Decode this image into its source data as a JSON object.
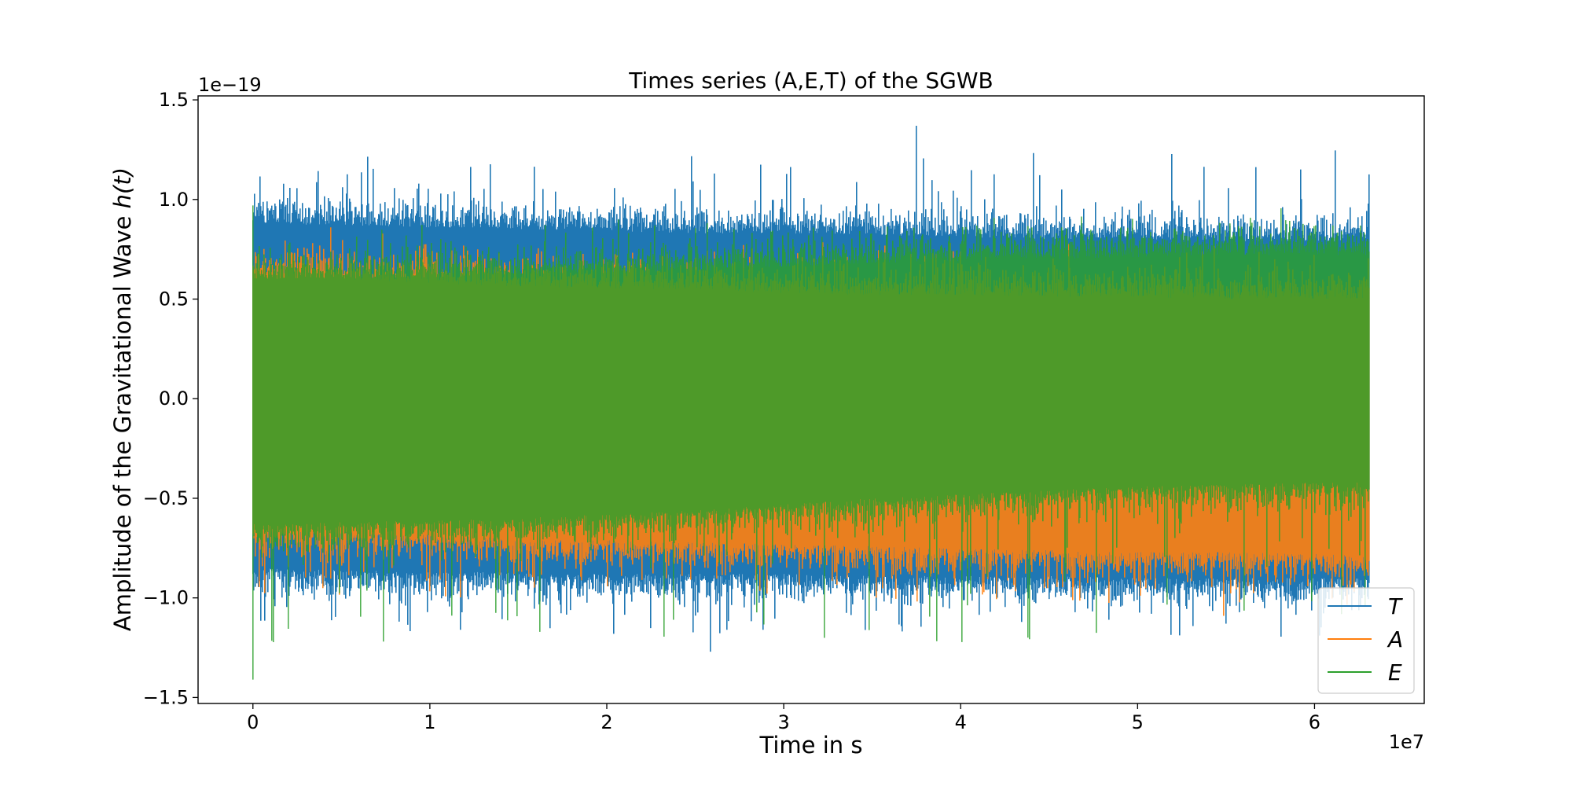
{
  "chart_data": {
    "type": "line",
    "title": "Times series (A,E,T) of the SGWB",
    "xlabel": "Time in s",
    "ylabel_prefix": "Amplitude of the Gravitational Wave ",
    "ylabel_math": "h(t)",
    "x_offset_label": "1e7",
    "y_offset_label": "1e−19",
    "xlim": [
      -0.31,
      6.62
    ],
    "ylim": [
      -1.53,
      1.52
    ],
    "x_scale_factor": 10000000.0,
    "y_scale_factor": 1e-19,
    "x_range": [
      0,
      6.31
    ],
    "xticks": [
      0,
      1,
      2,
      3,
      4,
      5,
      6
    ],
    "xtick_labels": [
      "0",
      "1",
      "2",
      "3",
      "4",
      "5",
      "6"
    ],
    "yticks": [
      -1.5,
      -1.0,
      -0.5,
      0.0,
      0.5,
      1.0,
      1.5
    ],
    "ytick_labels": [
      "−1.5",
      "−1.0",
      "−0.5",
      "0.0",
      "0.5",
      "1.0",
      "1.5"
    ],
    "grid": false,
    "legend_position": "lower-right",
    "series": [
      {
        "name": "T",
        "color": "#1f77b4",
        "envelope": {
          "x": [
            0,
            0.5,
            1,
            1.5,
            2,
            2.5,
            3,
            3.5,
            4,
            4.5,
            5,
            5.5,
            6,
            6.31
          ],
          "upper": [
            0.88,
            0.87,
            0.86,
            0.85,
            0.84,
            0.83,
            0.83,
            0.82,
            0.81,
            0.8,
            0.8,
            0.79,
            0.79,
            0.79
          ],
          "lower": [
            -0.85,
            -0.86,
            -0.87,
            -0.87,
            -0.88,
            -0.88,
            -0.88,
            -0.89,
            -0.89,
            -0.89,
            -0.9,
            -0.9,
            -0.9,
            -0.9
          ],
          "spike_max": 1.37,
          "spike_min": -1.27
        }
      },
      {
        "name": "A",
        "color": "#ff7f0e",
        "envelope": {
          "x": [
            0,
            0.5,
            1,
            1.5,
            2,
            2.5,
            3,
            3.5,
            4,
            4.5,
            5,
            5.5,
            6,
            6.31
          ],
          "upper": [
            0.62,
            0.6,
            0.58,
            0.56,
            0.55,
            0.55,
            0.53,
            0.52,
            0.52,
            0.51,
            0.51,
            0.5,
            0.5,
            0.5
          ],
          "lower": [
            -0.66,
            -0.67,
            -0.68,
            -0.7,
            -0.71,
            -0.72,
            -0.73,
            -0.74,
            -0.75,
            -0.76,
            -0.77,
            -0.77,
            -0.78,
            -0.78
          ],
          "spike_max": 0.86,
          "spike_min": -1.09
        }
      },
      {
        "name": "E",
        "color": "#2ca02c",
        "envelope": {
          "x": [
            0,
            0.5,
            1,
            1.5,
            2,
            2.5,
            3,
            3.5,
            4,
            4.5,
            5,
            5.5,
            6,
            6.31
          ],
          "upper": [
            0.6,
            0.6,
            0.61,
            0.62,
            0.63,
            0.64,
            0.66,
            0.68,
            0.69,
            0.7,
            0.71,
            0.72,
            0.72,
            0.72
          ],
          "lower": [
            -0.63,
            -0.62,
            -0.61,
            -0.6,
            -0.58,
            -0.56,
            -0.53,
            -0.5,
            -0.48,
            -0.46,
            -0.44,
            -0.43,
            -0.42,
            -0.42
          ],
          "spike_max": 0.97,
          "spike_min": -1.41
        }
      }
    ]
  }
}
